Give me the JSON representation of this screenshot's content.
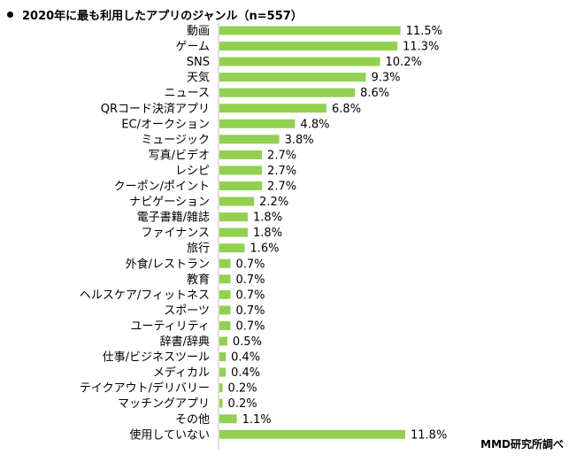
{
  "title": "2020年に最も利用したアプリのジャンル（n=557）",
  "source": "MMD研究所調べ",
  "chart_data": {
    "type": "bar",
    "orientation": "horizontal",
    "title": "2020年に最も利用したアプリのジャンル（n=557）",
    "unit": "%",
    "bar_color": "#92d050",
    "categories": [
      "動画",
      "ゲーム",
      "SNS",
      "天気",
      "ニュース",
      "QRコード決済アプリ",
      "EC/オークション",
      "ミュージック",
      "写真/ビデオ",
      "レシピ",
      "クーポン/ポイント",
      "ナビゲーション",
      "電子書籍/雑誌",
      "ファイナンス",
      "旅行",
      "外食/レストラン",
      "教育",
      "ヘルスケア/フィットネス",
      "スポーツ",
      "ユーティリティ",
      "辞書/辞典",
      "仕事/ビジネスツール",
      "メディカル",
      "テイクアウト/デリバリー",
      "マッチングアプリ",
      "その他",
      "使用していない"
    ],
    "values": [
      11.5,
      11.3,
      10.2,
      9.3,
      8.6,
      6.8,
      4.8,
      3.8,
      2.7,
      2.7,
      2.7,
      2.2,
      1.8,
      1.8,
      1.6,
      0.7,
      0.7,
      0.7,
      0.7,
      0.7,
      0.5,
      0.4,
      0.4,
      0.2,
      0.2,
      1.1,
      11.8
    ],
    "labels": [
      "11.5%",
      "11.3%",
      "10.2%",
      "9.3%",
      "8.6%",
      "6.8%",
      "4.8%",
      "3.8%",
      "2.7%",
      "2.7%",
      "2.7%",
      "2.2%",
      "1.8%",
      "1.8%",
      "1.6%",
      "0.7%",
      "0.7%",
      "0.7%",
      "0.7%",
      "0.7%",
      "0.5%",
      "0.4%",
      "0.4%",
      "0.2%",
      "0.2%",
      "1.1%",
      "11.8%"
    ]
  }
}
